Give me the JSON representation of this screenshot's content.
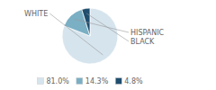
{
  "chart_data": {
    "type": "pie",
    "categories": [
      "WHITE",
      "HISPANIC",
      "BLACK"
    ],
    "values": [
      81.0,
      14.3,
      4.8
    ],
    "value_labels": [
      "81.0%",
      "14.3%",
      "4.8%"
    ],
    "colors": [
      "#d6e4ed",
      "#7aafc4",
      "#1f4e6e"
    ],
    "legend": "bottom"
  }
}
